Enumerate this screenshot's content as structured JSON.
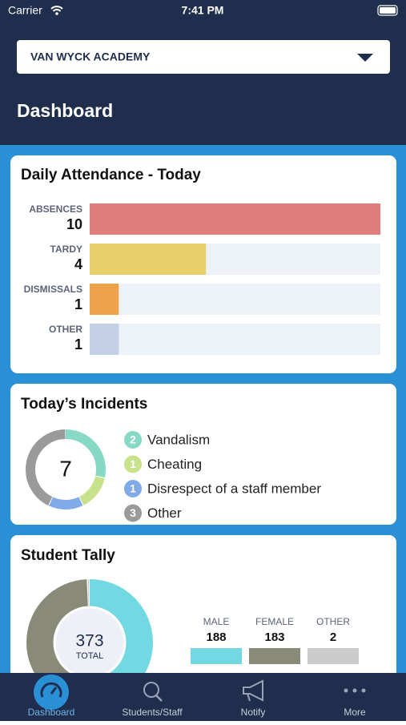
{
  "status_bar": {
    "carrier": "Carrier",
    "time": "7:41 PM"
  },
  "header": {
    "school": "VAN WYCK ACADEMY",
    "title": "Dashboard"
  },
  "attendance": {
    "title": "Daily Attendance - Today",
    "rows": [
      {
        "label": "ABSENCES",
        "value": 10,
        "color": "#e07d7d"
      },
      {
        "label": "TARDY",
        "value": 4,
        "color": "#e8d16a"
      },
      {
        "label": "DISMISSALS",
        "value": 1,
        "color": "#eea24a"
      },
      {
        "label": "OTHER",
        "value": 1,
        "color": "#c4d0e6"
      }
    ]
  },
  "incidents": {
    "title": "Today’s Incidents",
    "total": 7,
    "items": [
      {
        "label": "Vandalism",
        "count": 2,
        "color": "#86d9c4"
      },
      {
        "label": "Cheating",
        "count": 1,
        "color": "#c8e28c"
      },
      {
        "label": "Disrespect of a staff member",
        "count": 1,
        "color": "#80aae8"
      },
      {
        "label": "Other",
        "count": 3,
        "color": "#9a9a9a"
      }
    ]
  },
  "tally": {
    "title": "Student Tally",
    "total": 373,
    "total_label": "TOTAL",
    "groups": [
      {
        "label": "MALE",
        "count": 188,
        "percent": "50.4%",
        "color": "#72d8e2"
      },
      {
        "label": "FEMALE",
        "count": 183,
        "percent": "49.1%",
        "color": "#898b78"
      },
      {
        "label": "OTHER",
        "count": 2,
        "percent": "0.5%",
        "color": "#cccccc"
      }
    ]
  },
  "tabs": [
    "Dashboard",
    "Students/Staff",
    "Notify",
    "More"
  ]
}
